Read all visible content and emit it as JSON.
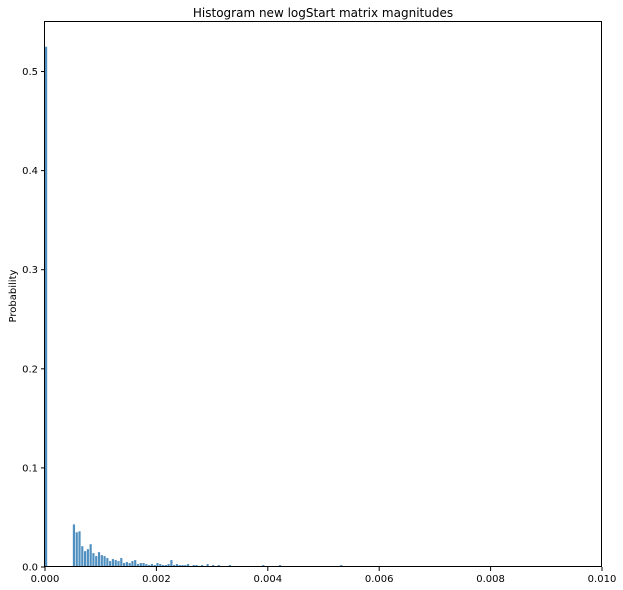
{
  "chart_data": {
    "type": "bar",
    "title": "Histogram new logStart matrix magnitudes",
    "xlabel": "",
    "ylabel": "Probability",
    "xlim": [
      0,
      0.01
    ],
    "ylim": [
      0,
      0.55
    ],
    "xticks": [
      "0.000",
      "0.002",
      "0.004",
      "0.006",
      "0.008",
      "0.010"
    ],
    "yticks": [
      "0.0",
      "0.1",
      "0.2",
      "0.3",
      "0.4",
      "0.5"
    ],
    "grid": false,
    "color": "#4f90c0",
    "bin_width": 5e-05,
    "series": [
      {
        "x": [
          0.0,
          0.0005,
          0.00055,
          0.0006,
          0.00065,
          0.0007,
          0.00075,
          0.0008,
          0.00085,
          0.0009,
          0.00095,
          0.001,
          0.00105,
          0.0011,
          0.00115,
          0.0012,
          0.00125,
          0.0013,
          0.00135,
          0.0014,
          0.00145,
          0.0015,
          0.00155,
          0.0016,
          0.00165,
          0.0017,
          0.00175,
          0.0018,
          0.00185,
          0.0019,
          0.00195,
          0.002,
          0.00205,
          0.0021,
          0.00215,
          0.0022,
          0.00225,
          0.0023,
          0.00235,
          0.0024,
          0.00245,
          0.0025,
          0.00255,
          0.0026,
          0.00265,
          0.0027,
          0.00275,
          0.0028,
          0.00285,
          0.0029,
          0.00295,
          0.003,
          0.0031,
          0.0032,
          0.0033,
          0.0034,
          0.0035,
          0.0036,
          0.0037,
          0.0038,
          0.0039,
          0.004,
          0.0041,
          0.0042,
          0.0044,
          0.0046,
          0.0048,
          0.005,
          0.0053,
          0.0056,
          0.006,
          0.0064,
          0.007,
          0.0078
        ],
        "values": [
          0.525,
          0.043,
          0.035,
          0.036,
          0.021,
          0.016,
          0.018,
          0.023,
          0.014,
          0.011,
          0.015,
          0.012,
          0.011,
          0.009,
          0.006,
          0.008,
          0.007,
          0.006,
          0.009,
          0.004,
          0.005,
          0.004,
          0.006,
          0.007,
          0.003,
          0.004,
          0.004,
          0.003,
          0.002,
          0.003,
          0.002,
          0.004,
          0.003,
          0.002,
          0.002,
          0.003,
          0.007,
          0.002,
          0.003,
          0.002,
          0.002,
          0.002,
          0.003,
          0.001,
          0.002,
          0.002,
          0.001,
          0.002,
          0.001,
          0.003,
          0.001,
          0.002,
          0.002,
          0.001,
          0.002,
          0.001,
          0.001,
          0.001,
          0.001,
          0.001,
          0.002,
          0.001,
          0.001,
          0.002,
          0.001,
          0.001,
          0.001,
          0.001,
          0.002,
          0.001,
          0.001,
          0.001,
          0.001,
          0.001
        ]
      }
    ]
  }
}
